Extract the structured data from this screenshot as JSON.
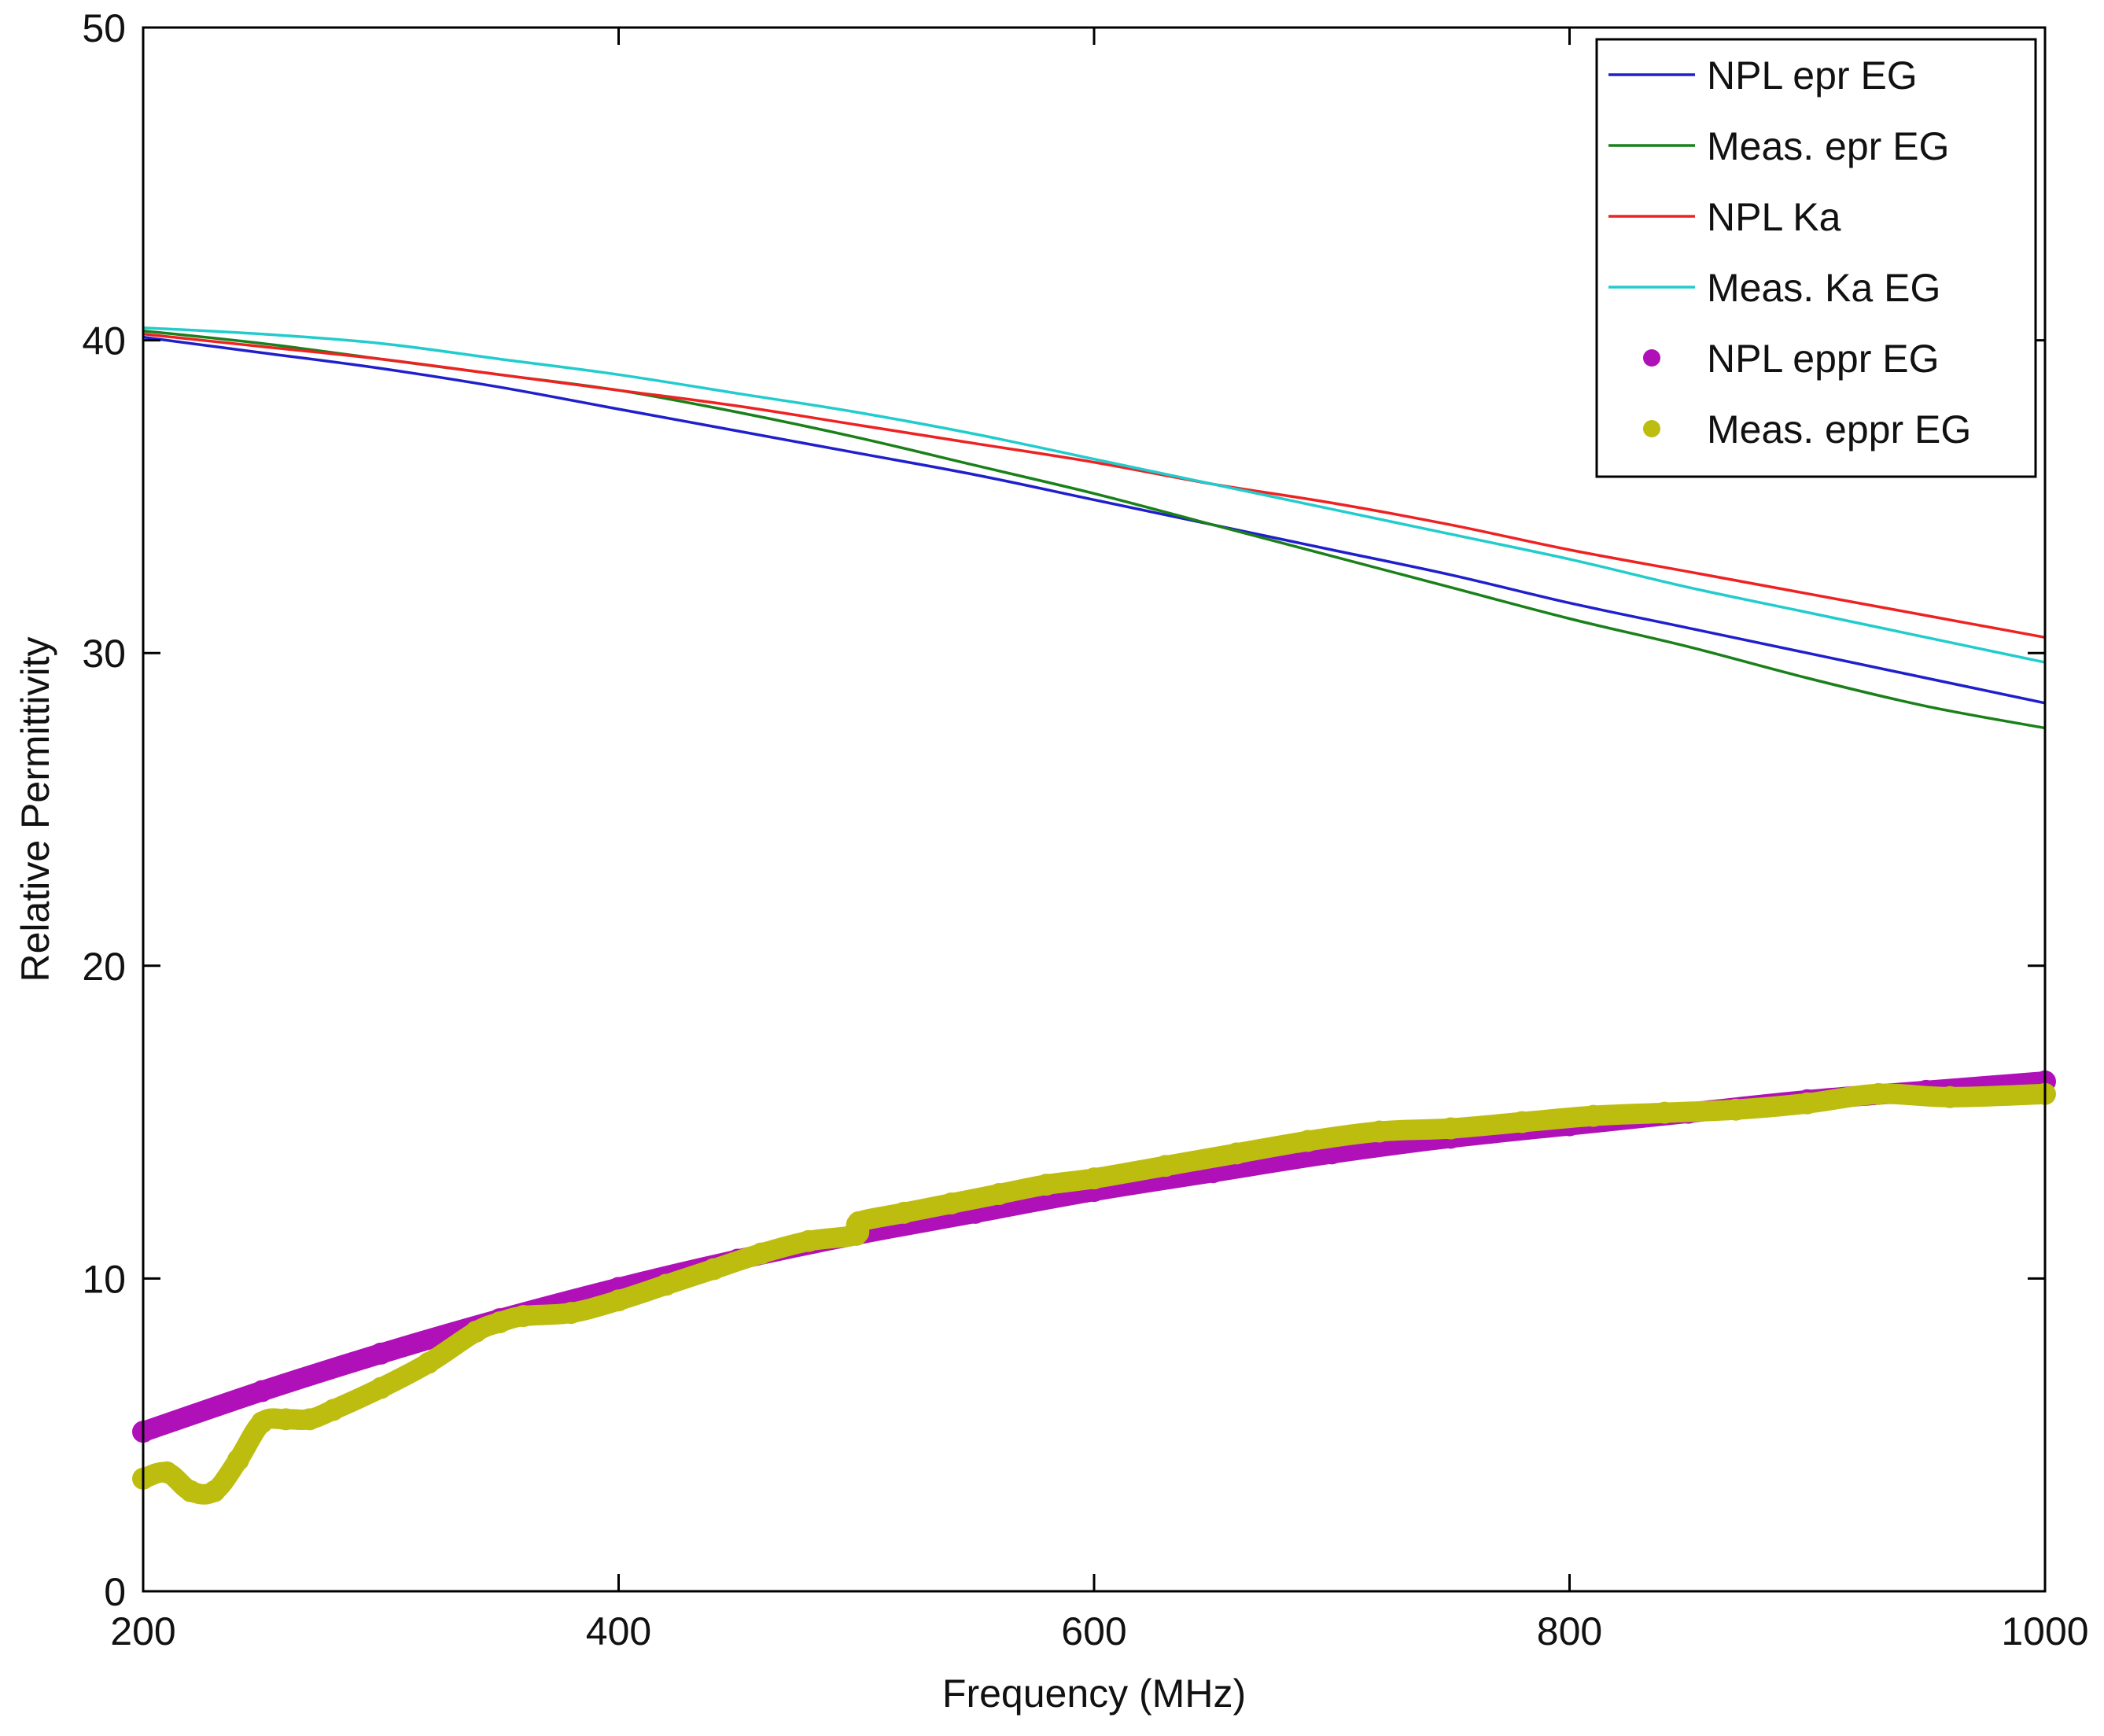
{
  "chart_data": {
    "type": "line",
    "title": "",
    "xlabel": "Frequency (MHz)",
    "ylabel": "Relative Permittivity",
    "xlim": [
      200,
      1000
    ],
    "ylim": [
      0,
      50
    ],
    "xticks": [
      200,
      400,
      600,
      800,
      1000
    ],
    "yticks": [
      0,
      10,
      20,
      30,
      40,
      50
    ],
    "grid": false,
    "legend_position": "top-right",
    "series": [
      {
        "name": "NPL epr EG",
        "style": "line",
        "color": "#1f1fcc",
        "x": [
          200,
          250,
          300,
          350,
          400,
          450,
          500,
          550,
          600,
          650,
          700,
          750,
          800,
          850,
          900,
          950,
          1000
        ],
        "y": [
          40.1,
          39.6,
          39.1,
          38.5,
          37.8,
          37.1,
          36.4,
          35.7,
          34.9,
          34.1,
          33.3,
          32.5,
          31.6,
          30.8,
          30.0,
          29.2,
          28.4
        ]
      },
      {
        "name": "Meas. epr EG",
        "style": "line",
        "color": "#1a801a",
        "x": [
          200,
          250,
          300,
          350,
          400,
          450,
          500,
          550,
          600,
          650,
          700,
          750,
          800,
          850,
          900,
          950,
          1000
        ],
        "y": [
          40.3,
          39.9,
          39.4,
          38.9,
          38.4,
          37.7,
          36.9,
          36.0,
          35.1,
          34.1,
          33.1,
          32.1,
          31.1,
          30.2,
          29.2,
          28.3,
          27.6
        ]
      },
      {
        "name": "NPL Ka",
        "style": "line",
        "color": "#ee2222",
        "x": [
          200,
          250,
          300,
          350,
          400,
          450,
          500,
          550,
          600,
          650,
          700,
          750,
          800,
          850,
          900,
          950,
          1000
        ],
        "y": [
          40.2,
          39.8,
          39.4,
          38.9,
          38.4,
          37.9,
          37.3,
          36.7,
          36.1,
          35.4,
          34.8,
          34.1,
          33.3,
          32.6,
          31.9,
          31.2,
          30.5
        ]
      },
      {
        "name": "Meas. Ka EG",
        "style": "line",
        "color": "#22cccc",
        "x": [
          200,
          250,
          300,
          350,
          400,
          450,
          500,
          550,
          600,
          650,
          700,
          750,
          800,
          850,
          900,
          950,
          1000
        ],
        "y": [
          40.4,
          40.2,
          39.9,
          39.4,
          38.9,
          38.3,
          37.7,
          37.0,
          36.2,
          35.4,
          34.6,
          33.8,
          33.0,
          32.1,
          31.3,
          30.5,
          29.7
        ]
      },
      {
        "name": "NPL eppr EG",
        "style": "markers",
        "color": "#b010b8",
        "x": [
          200,
          250,
          300,
          350,
          400,
          450,
          500,
          550,
          600,
          650,
          700,
          750,
          800,
          850,
          900,
          950,
          1000
        ],
        "y": [
          5.1,
          6.4,
          7.6,
          8.7,
          9.7,
          10.6,
          11.4,
          12.1,
          12.8,
          13.4,
          14.0,
          14.5,
          14.9,
          15.3,
          15.7,
          16.0,
          16.3
        ]
      },
      {
        "name": "Meas. eppr EG",
        "style": "markers",
        "color": "#bdbd10",
        "x": [
          200,
          210,
          220,
          230,
          240,
          250,
          260,
          270,
          280,
          300,
          320,
          340,
          350,
          360,
          380,
          400,
          420,
          440,
          460,
          480,
          500,
          501,
          520,
          540,
          560,
          580,
          600,
          630,
          660,
          690,
          720,
          750,
          780,
          810,
          840,
          870,
          900,
          930,
          960,
          1000
        ],
        "y": [
          3.6,
          3.8,
          3.2,
          3.2,
          4.2,
          5.4,
          5.5,
          5.5,
          5.8,
          6.5,
          7.3,
          8.3,
          8.6,
          8.8,
          8.9,
          9.3,
          9.8,
          10.3,
          10.8,
          11.2,
          11.4,
          11.8,
          12.1,
          12.4,
          12.7,
          13.0,
          13.2,
          13.6,
          14.0,
          14.4,
          14.7,
          14.8,
          15.0,
          15.2,
          15.3,
          15.4,
          15.6,
          15.9,
          15.8,
          15.9
        ]
      }
    ]
  }
}
